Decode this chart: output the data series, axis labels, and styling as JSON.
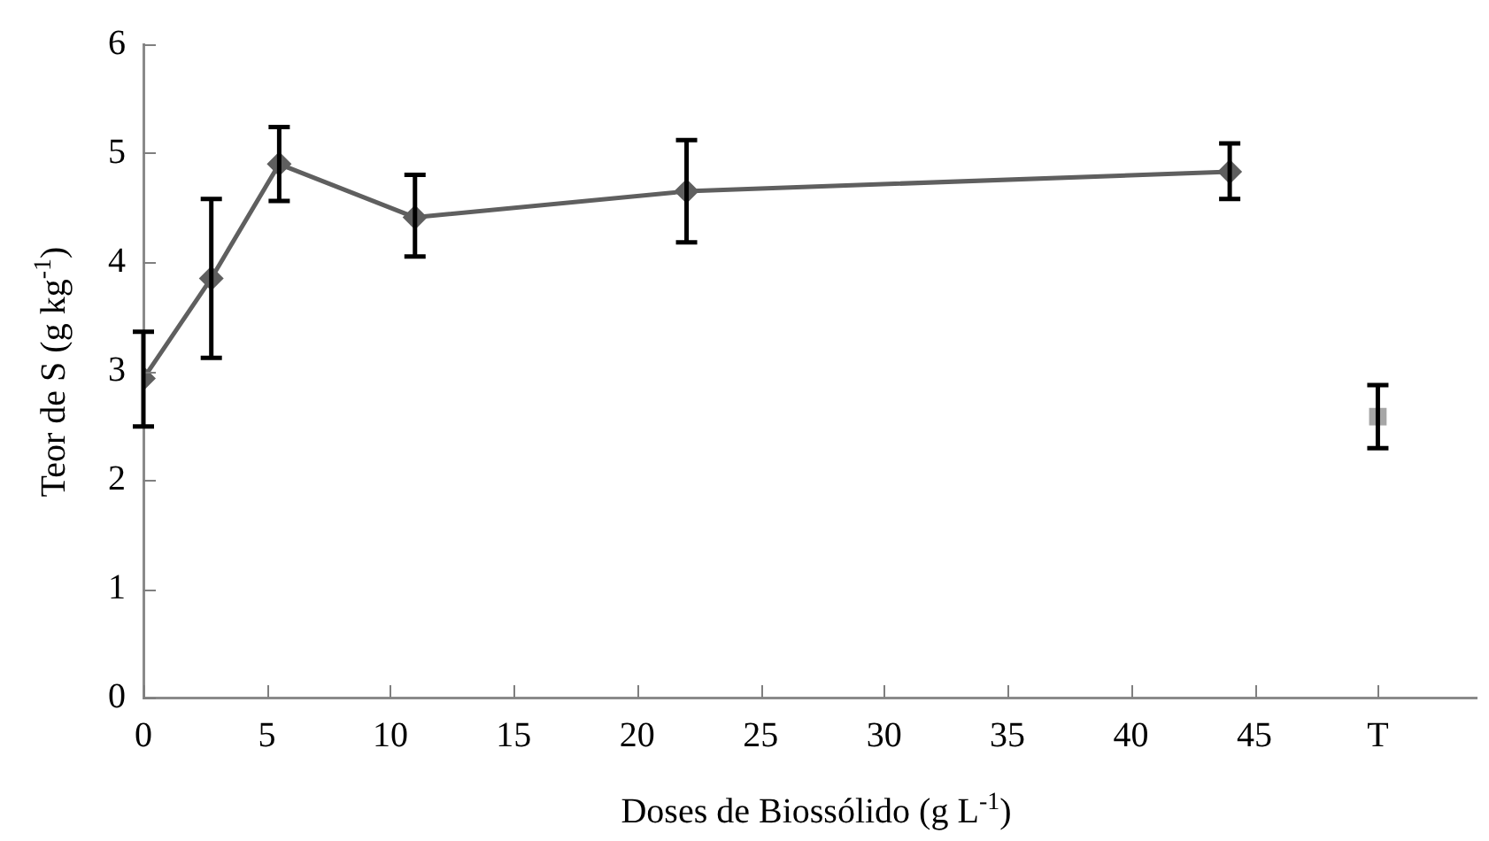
{
  "chart_data": {
    "type": "line",
    "xlabel": "Doses de Biossólido (g L$^{-1}$)",
    "ylabel": "Teor de S (g kg$^{-1}$)",
    "xlim": [
      0,
      54
    ],
    "xticks": [
      0,
      5,
      10,
      15,
      20,
      25,
      30,
      35,
      40,
      45,
      {
        "value": 50,
        "label": "T"
      }
    ],
    "ylim": [
      0,
      6
    ],
    "yticks": [
      0,
      1,
      2,
      3,
      4,
      5,
      6
    ],
    "grid": false,
    "legend": false,
    "line_style": "solid",
    "series": [
      {
        "type": "line",
        "color": "#5f5f5f",
        "marker": "diamond",
        "x": [
          0,
          2.75,
          5.5,
          11,
          22,
          44
        ],
        "values": [
          2.93,
          3.85,
          4.9,
          4.41,
          4.65,
          4.83
        ],
        "errors": [
          [
            2.49,
            3.36
          ],
          [
            3.12,
            4.58
          ],
          [
            4.56,
            5.24
          ],
          [
            4.05,
            4.8
          ],
          [
            4.18,
            5.12
          ],
          [
            4.58,
            5.09
          ]
        ]
      },
      {
        "type": "scatter",
        "color": "#a6a6a6",
        "marker": "square",
        "x": [
          50
        ],
        "values": [
          2.58
        ],
        "errors": [
          [
            2.29,
            2.87
          ]
        ]
      }
    ]
  }
}
